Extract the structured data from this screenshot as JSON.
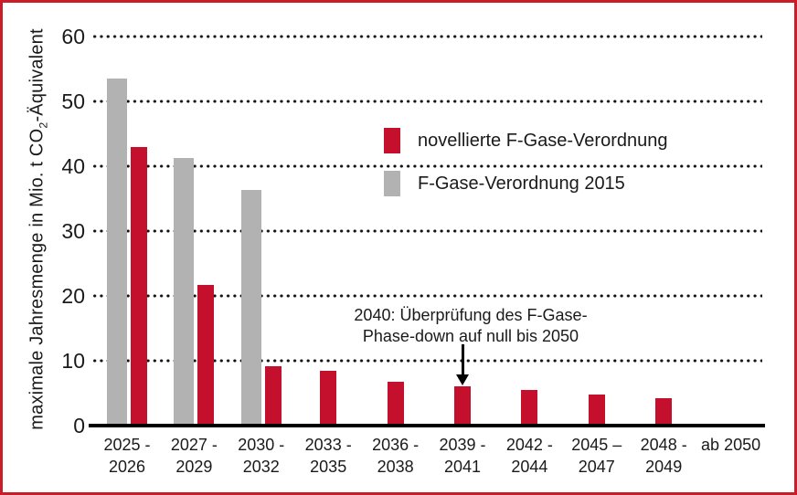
{
  "frame": {
    "border_color": "#cb1d28",
    "background": "#ffffff"
  },
  "chart_data": {
    "type": "bar",
    "title": "",
    "ylabel_parts": {
      "prefix": "maximale Jahresmenge in Mio. t  CO",
      "sub": "2",
      "suffix": "-Äquivalent"
    },
    "ylim": [
      0,
      60
    ],
    "yticks": [
      0,
      10,
      20,
      30,
      40,
      50,
      60
    ],
    "grid": "horizontal-dotted",
    "legend_position": "upper right of plot",
    "categories": [
      [
        "2025 -",
        "2026"
      ],
      [
        "2027 -",
        "2029"
      ],
      [
        "2030 -",
        "2032"
      ],
      [
        "2033 -",
        "2035"
      ],
      [
        "2036 -",
        "2038"
      ],
      [
        "2039 -",
        "2041"
      ],
      [
        "2042 -",
        "2044"
      ],
      [
        "2045 –",
        "2047"
      ],
      [
        "2048 -",
        "2049"
      ],
      [
        "ab 2050"
      ]
    ],
    "series": [
      {
        "name": "novellierte F-Gase-Verordnung",
        "color": "#c5102d",
        "values": [
          42.9,
          21.7,
          9.1,
          8.4,
          6.8,
          6.1,
          5.5,
          4.8,
          4.2,
          0
        ]
      },
      {
        "name": "F-Gase-Verordnung 2015",
        "color": "#b2b2b2",
        "values": [
          53.5,
          41.2,
          36.3,
          null,
          null,
          null,
          null,
          null,
          null,
          null
        ]
      }
    ],
    "annotation": {
      "lines": [
        "2040: Überprüfung des F-Gase-",
        "Phase-down auf null bis 2050"
      ],
      "target_category": "2039 - 2041",
      "target_index": 5,
      "target_value": 6.1
    }
  }
}
